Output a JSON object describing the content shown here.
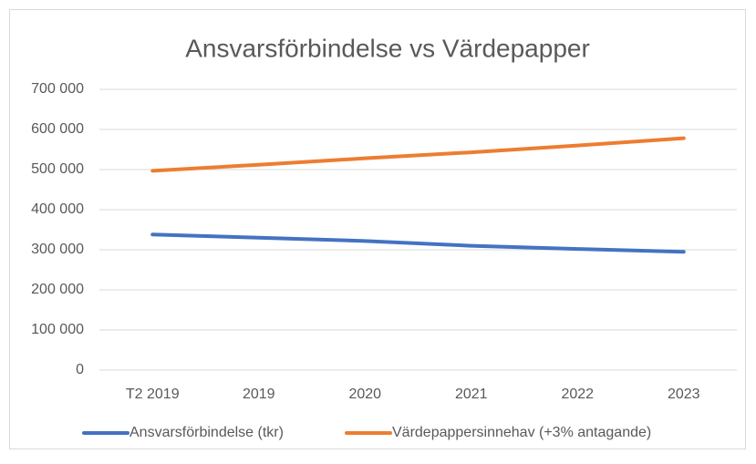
{
  "chart_data": {
    "type": "line",
    "title": "Ansvarsförbindelse vs Värdepapper",
    "categories": [
      "T2 2019",
      "2019",
      "2020",
      "2021",
      "2022",
      "2023"
    ],
    "series": [
      {
        "name": "Ansvarsförbindelse (tkr)",
        "color": "#4472c4",
        "values": [
          338000,
          330000,
          322000,
          310000,
          302000,
          295000
        ]
      },
      {
        "name": "Värdepappersinnehav (+3% antagande)",
        "color": "#ed7d31",
        "values": [
          497000,
          512000,
          528000,
          543000,
          560000,
          578000
        ]
      }
    ],
    "ylim": [
      0,
      700000
    ],
    "yticks": [
      0,
      {
        "value": 100000,
        "label": "100 000"
      },
      {
        "value": 200000,
        "label": "200 000"
      },
      {
        "value": 300000,
        "label": "300 000"
      },
      {
        "value": 400000,
        "label": "400 000"
      },
      {
        "value": 500000,
        "label": "500 000"
      },
      {
        "value": 600000,
        "label": "600 000"
      },
      {
        "value": 700000,
        "label": "700 000"
      }
    ],
    "grid": true,
    "legend": "bottom"
  }
}
